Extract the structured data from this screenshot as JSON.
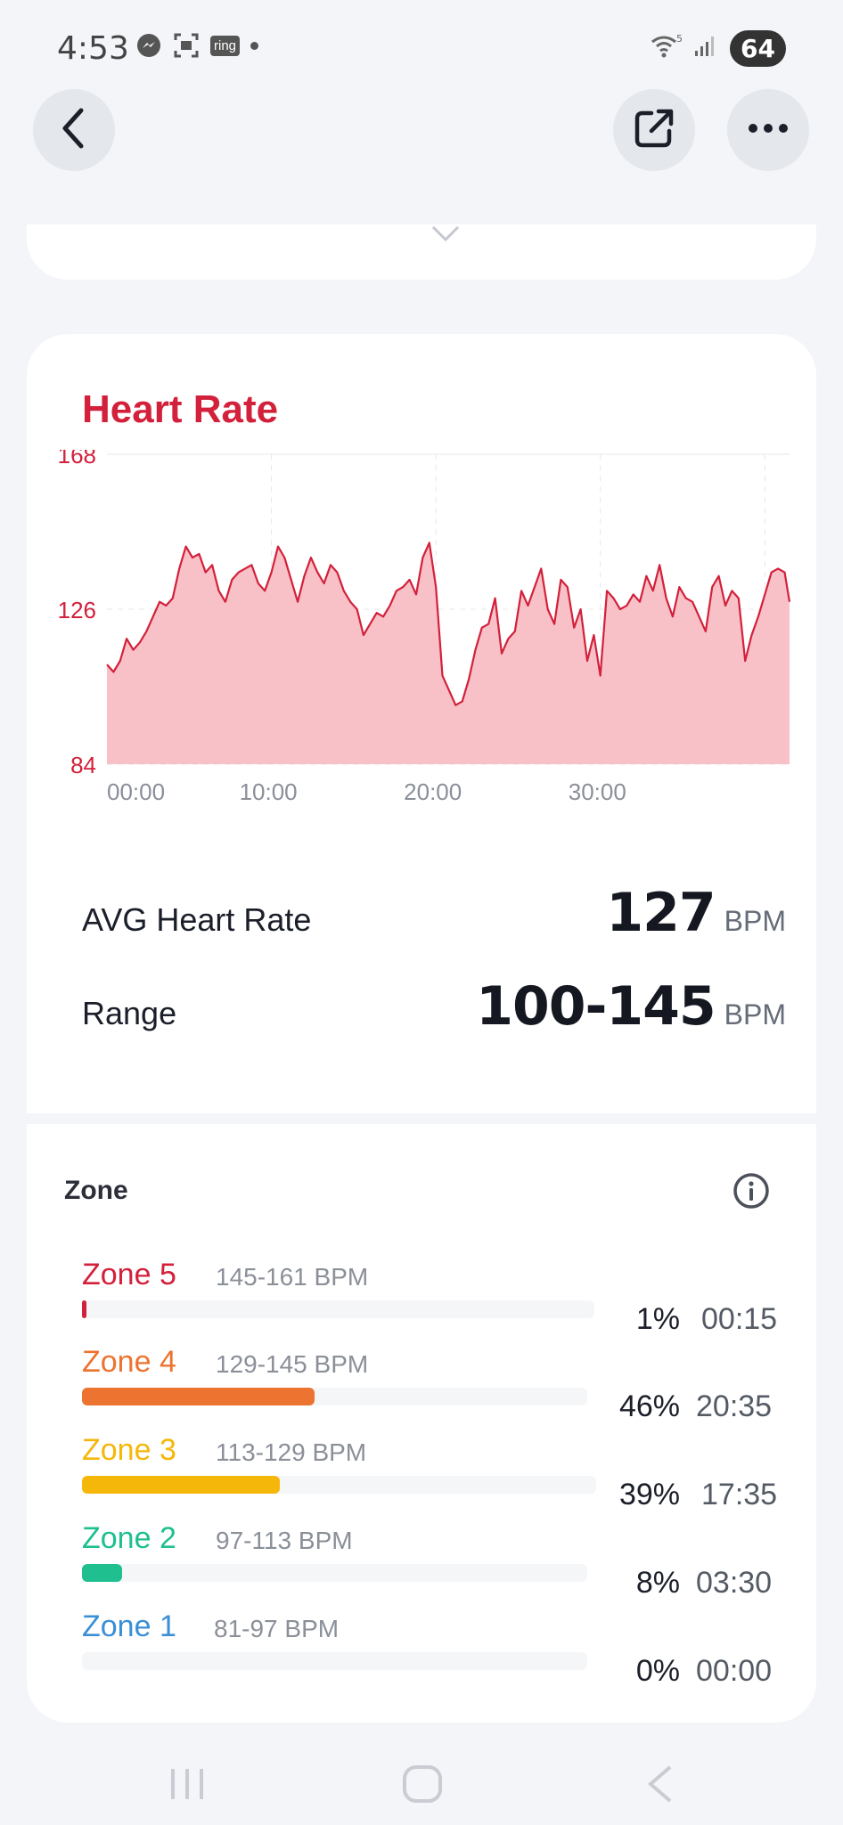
{
  "status_bar": {
    "time": "4:53",
    "ring_badge": "ring",
    "battery": "64",
    "wifi_label": "5"
  },
  "heart_rate": {
    "title": "Heart Rate",
    "avg_label": "AVG Heart Rate",
    "avg_value": "127",
    "range_label": "Range",
    "range_value": "100-145",
    "unit": "BPM"
  },
  "chart_data": {
    "type": "area",
    "title": "Heart Rate",
    "y_ticks": [
      "168",
      "126",
      "84"
    ],
    "x_ticks": [
      "00:00",
      "10:00",
      "20:00",
      "30:00"
    ],
    "ylim": [
      84,
      168
    ],
    "xlim": [
      0,
      41.5
    ],
    "grid": true,
    "color": "#d3203b",
    "fill_color": "#f8c1c7",
    "x": [
      0,
      0.4,
      0.8,
      1.2,
      1.6,
      2.0,
      2.4,
      2.8,
      3.2,
      3.6,
      4.0,
      4.4,
      4.8,
      5.2,
      5.6,
      6.0,
      6.4,
      6.8,
      7.2,
      7.6,
      8.0,
      8.4,
      8.8,
      9.2,
      9.6,
      10.0,
      10.4,
      10.8,
      11.2,
      11.6,
      12.0,
      12.4,
      12.8,
      13.2,
      13.6,
      14.0,
      14.4,
      14.8,
      15.2,
      15.6,
      16.0,
      16.4,
      16.8,
      17.2,
      17.6,
      18.0,
      18.4,
      18.8,
      19.2,
      19.6,
      20.0,
      20.4,
      20.8,
      21.2,
      21.6,
      22.0,
      22.4,
      22.8,
      23.2,
      23.6,
      24.0,
      24.4,
      24.8,
      25.2,
      25.6,
      26.0,
      26.4,
      26.8,
      27.2,
      27.6,
      28.0,
      28.4,
      28.8,
      29.2,
      29.6,
      30.0,
      30.4,
      30.8,
      31.2,
      31.6,
      32.0,
      32.4,
      32.8,
      33.2,
      33.6,
      34.0,
      34.4,
      34.8,
      35.2,
      35.6,
      36.0,
      36.4,
      36.8,
      37.2,
      37.6,
      38.0,
      38.4,
      38.8,
      39.2,
      39.6,
      40.0,
      40.4,
      40.8,
      41.2,
      41.5
    ],
    "y": [
      111,
      109,
      112,
      118,
      115,
      117,
      120,
      124,
      128,
      127,
      129,
      137,
      143,
      140,
      141,
      136,
      138,
      131,
      128,
      134,
      136,
      137,
      138,
      133,
      131,
      136,
      143,
      140,
      134,
      128,
      135,
      140,
      136,
      133,
      138,
      136,
      131,
      128,
      126,
      119,
      122,
      125,
      124,
      127,
      131,
      132,
      134,
      130,
      140,
      144,
      132,
      108,
      104,
      100,
      101,
      107,
      115,
      121,
      122,
      129,
      114,
      118,
      120,
      131,
      127,
      132,
      137,
      126,
      122,
      134,
      132,
      121,
      126,
      112,
      119,
      108,
      131,
      129,
      126,
      127,
      130,
      128,
      135,
      131,
      138,
      129,
      124,
      132,
      129,
      128,
      124,
      120,
      132,
      135,
      127,
      131,
      129,
      112,
      119,
      124,
      130,
      136,
      137,
      136,
      128
    ]
  },
  "zones": {
    "title": "Zone",
    "items": [
      {
        "name": "Zone 5",
        "range": "145-161 BPM",
        "pct": "1%",
        "time": "00:15",
        "fill": 0.01,
        "color": "#d3203b"
      },
      {
        "name": "Zone 4",
        "range": "129-145 BPM",
        "pct": "46%",
        "time": "20:35",
        "fill": 0.46,
        "color": "#ec7430"
      },
      {
        "name": "Zone 3",
        "range": "113-129 BPM",
        "pct": "39%",
        "time": "17:35",
        "fill": 0.39,
        "color": "#f5b70a"
      },
      {
        "name": "Zone 2",
        "range": "97-113 BPM",
        "pct": "8%",
        "time": "03:30",
        "fill": 0.08,
        "color": "#1fbf8f"
      },
      {
        "name": "Zone 1",
        "range": "81-97 BPM",
        "pct": "0%",
        "time": "00:00",
        "fill": 0.0,
        "color": "#3a8fd6"
      }
    ]
  },
  "icons": {
    "back": "chevron-left-icon",
    "share": "external-link-icon",
    "more": "more-horizontal-icon",
    "info": "info-icon",
    "nav_recent": "recent-apps-icon",
    "nav_home": "home-icon",
    "nav_back": "back-nav-icon"
  }
}
